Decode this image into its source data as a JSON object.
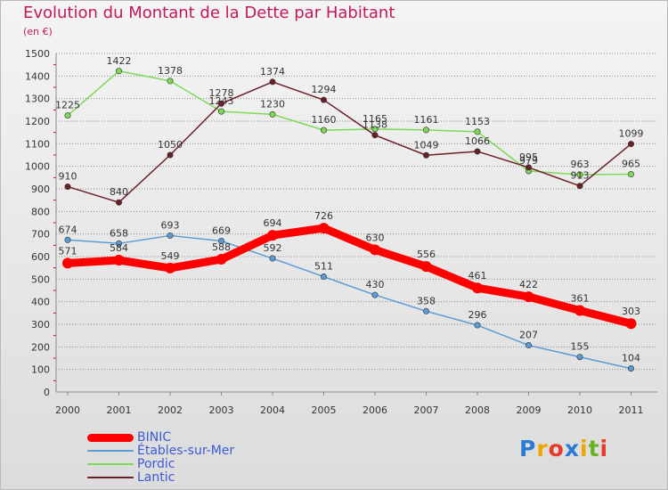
{
  "title": "Evolution du Montant de la Dette par Habitant",
  "unit": "(en €)",
  "logo": {
    "letters": [
      "P",
      "r",
      "o",
      "x",
      "i",
      "t",
      "i"
    ],
    "colors": [
      "#2b7bd6",
      "#f0a500",
      "#e8392a",
      "#2b7bd6",
      "#f0a500",
      "#6ab023",
      "#e8392a"
    ]
  },
  "colors": {
    "grid": "#8c8c8c",
    "axis_text": "#333333",
    "value_text": "#333333",
    "tick_red": "#cc0000"
  },
  "chart_data": {
    "type": "line",
    "x": [
      2000,
      2001,
      2002,
      2003,
      2004,
      2005,
      2006,
      2007,
      2008,
      2009,
      2010,
      2011
    ],
    "ylim": [
      0,
      1500
    ],
    "yticks": [
      0,
      100,
      200,
      300,
      400,
      500,
      600,
      700,
      800,
      900,
      1000,
      1100,
      1200,
      1300,
      1400,
      1500
    ],
    "grid": "horizontal",
    "legend_position": "bottom-left",
    "series": [
      {
        "name": "BINIC",
        "color": "#ff0000",
        "emphasis": true,
        "values": [
          571,
          584,
          549,
          588,
          694,
          726,
          630,
          556,
          461,
          422,
          361,
          303
        ]
      },
      {
        "name": "Étables-sur-Mer",
        "color": "#5b9bd5",
        "emphasis": false,
        "values": [
          674,
          658,
          693,
          669,
          592,
          511,
          430,
          358,
          296,
          207,
          155,
          104
        ]
      },
      {
        "name": "Pordic",
        "color": "#7ed957",
        "emphasis": false,
        "values": [
          1225,
          1422,
          1378,
          1243,
          1230,
          1160,
          1165,
          1161,
          1153,
          979,
          963,
          965
        ]
      },
      {
        "name": "Lantic",
        "color": "#6b1f26",
        "emphasis": false,
        "values": [
          910,
          840,
          1050,
          1278,
          1374,
          1294,
          1138,
          1049,
          1066,
          995,
          913,
          1099
        ]
      }
    ]
  }
}
